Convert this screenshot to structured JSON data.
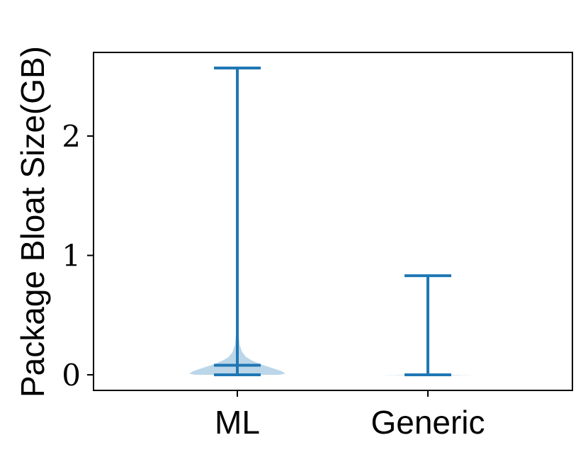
{
  "chart_data": {
    "type": "violin",
    "title": "",
    "xlabel": "",
    "ylabel": "Package Bloat Size(GB)",
    "categories": [
      "ML",
      "Generic"
    ],
    "yticks": [
      0,
      1,
      2
    ],
    "ytick_labels": [
      "0",
      "1",
      "2"
    ],
    "ylim": [
      -0.12,
      2.7
    ],
    "grid": false,
    "violins": [
      {
        "name": "ML",
        "min": 0.0,
        "max": 2.57,
        "median": 0.08,
        "density_profile": [
          {
            "y": 0.0,
            "w": 0.88
          },
          {
            "y": 0.01,
            "w": 1.0
          },
          {
            "y": 0.03,
            "w": 0.92
          },
          {
            "y": 0.06,
            "w": 0.7
          },
          {
            "y": 0.09,
            "w": 0.47
          },
          {
            "y": 0.12,
            "w": 0.3
          },
          {
            "y": 0.15,
            "w": 0.18
          },
          {
            "y": 0.19,
            "w": 0.1
          },
          {
            "y": 0.25,
            "w": 0.05
          },
          {
            "y": 0.35,
            "w": 0.025
          },
          {
            "y": 0.6,
            "w": 0.012
          },
          {
            "y": 1.2,
            "w": 0.006
          },
          {
            "y": 2.57,
            "w": 0.003
          }
        ]
      },
      {
        "name": "Generic",
        "min": 0.0,
        "max": 0.83,
        "median": 0.0,
        "density_profile": [
          {
            "y": -0.003,
            "w": 1.0
          },
          {
            "y": 0.0,
            "w": 0.6
          },
          {
            "y": 0.004,
            "w": 0.0
          }
        ]
      }
    ],
    "colors": {
      "line": "#1f77b4",
      "fill": "#1f77b4",
      "fill_opacity": 0.3
    }
  }
}
